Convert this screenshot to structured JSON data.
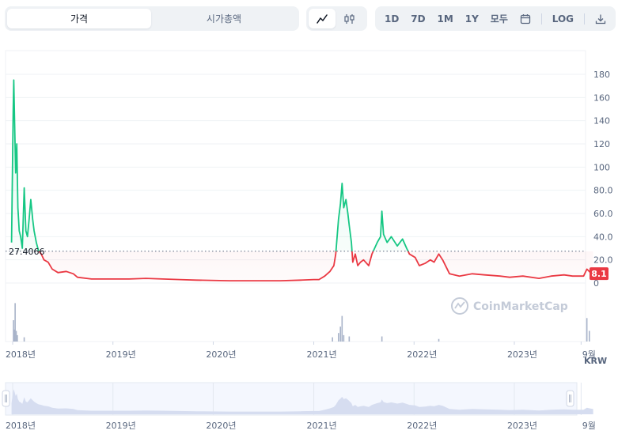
{
  "toolbar": {
    "tabs": [
      {
        "label": "가격",
        "active": true
      },
      {
        "label": "시가총액",
        "active": false
      }
    ],
    "chart_types": [
      {
        "icon": "line-chart-icon",
        "active": true
      },
      {
        "icon": "candlestick-icon",
        "active": false
      }
    ],
    "timeframes": [
      "1D",
      "7D",
      "1M",
      "1Y",
      "모두"
    ],
    "log_label": "LOG",
    "icons": {
      "calendar": "calendar-icon",
      "download": "download-icon"
    }
  },
  "price_panel": {
    "reference_label": "27.4066",
    "current_label": "8.1",
    "currency": "KRW",
    "watermark": "CoinMarketCap"
  },
  "colors": {
    "up": "#16c784",
    "down": "#ea3943",
    "volume": "#a8b3c9",
    "accent": "#ea3943"
  },
  "chart_data": {
    "type": "line",
    "title": "",
    "xlabel": "",
    "ylabel": "",
    "ylim": [
      0,
      190
    ],
    "y_ticks": [
      0,
      20.0,
      40.0,
      60.0,
      80.0,
      100,
      120,
      140,
      160,
      180
    ],
    "reference_value": 27.4066,
    "last_value": 8.1,
    "x_tick_labels": [
      "2018년",
      "2019년",
      "2020년",
      "2021년",
      "2022년",
      "2023년",
      "9월"
    ],
    "grid": true,
    "series": [
      {
        "points": [
          [
            "2017-12-28",
            35
          ],
          [
            "2018-01-03",
            150
          ],
          [
            "2018-01-05",
            175
          ],
          [
            "2018-01-08",
            140
          ],
          [
            "2018-01-12",
            95
          ],
          [
            "2018-01-16",
            120
          ],
          [
            "2018-01-20",
            65
          ],
          [
            "2018-01-25",
            45
          ],
          [
            "2018-01-30",
            40
          ],
          [
            "2018-02-05",
            30
          ],
          [
            "2018-02-12",
            82
          ],
          [
            "2018-02-18",
            45
          ],
          [
            "2018-02-24",
            40
          ],
          [
            "2018-03-02",
            55
          ],
          [
            "2018-03-08",
            72
          ],
          [
            "2018-03-15",
            55
          ],
          [
            "2018-03-20",
            45
          ],
          [
            "2018-03-28",
            35
          ],
          [
            "2018-04-05",
            28
          ],
          [
            "2018-04-15",
            25
          ],
          [
            "2018-04-25",
            20
          ],
          [
            "2018-05-10",
            18
          ],
          [
            "2018-05-25",
            12
          ],
          [
            "2018-06-15",
            9
          ],
          [
            "2018-07-15",
            10
          ],
          [
            "2018-08-10",
            8
          ],
          [
            "2018-08-25",
            5
          ],
          [
            "2018-10-15",
            3.5
          ],
          [
            "2019-01-01",
            3.5
          ],
          [
            "2019-03-01",
            3.5
          ],
          [
            "2019-05-01",
            4
          ],
          [
            "2019-07-01",
            3.5
          ],
          [
            "2019-09-01",
            3
          ],
          [
            "2019-11-01",
            2.5
          ],
          [
            "2020-03-01",
            2
          ],
          [
            "2020-06-01",
            2
          ],
          [
            "2020-09-01",
            2
          ],
          [
            "2020-11-15",
            2.5
          ],
          [
            "2021-01-01",
            3
          ],
          [
            "2021-01-20",
            3
          ],
          [
            "2021-02-10",
            6
          ],
          [
            "2021-03-01",
            10
          ],
          [
            "2021-03-15",
            15
          ],
          [
            "2021-03-22",
            25
          ],
          [
            "2021-04-01",
            55
          ],
          [
            "2021-04-08",
            68
          ],
          [
            "2021-04-14",
            86
          ],
          [
            "2021-04-20",
            65
          ],
          [
            "2021-04-28",
            72
          ],
          [
            "2021-05-05",
            60
          ],
          [
            "2021-05-10",
            50
          ],
          [
            "2021-05-18",
            35
          ],
          [
            "2021-05-23",
            18
          ],
          [
            "2021-06-01",
            25
          ],
          [
            "2021-06-10",
            15
          ],
          [
            "2021-06-20",
            18
          ],
          [
            "2021-07-01",
            20
          ],
          [
            "2021-07-20",
            15
          ],
          [
            "2021-08-01",
            25
          ],
          [
            "2021-08-20",
            35
          ],
          [
            "2021-09-01",
            40
          ],
          [
            "2021-09-06",
            62
          ],
          [
            "2021-09-12",
            42
          ],
          [
            "2021-09-25",
            35
          ],
          [
            "2021-10-10",
            40
          ],
          [
            "2021-11-01",
            32
          ],
          [
            "2021-11-20",
            38
          ],
          [
            "2021-12-05",
            30
          ],
          [
            "2021-12-15",
            25
          ],
          [
            "2022-01-05",
            22
          ],
          [
            "2022-01-20",
            15
          ],
          [
            "2022-02-10",
            17
          ],
          [
            "2022-03-01",
            20
          ],
          [
            "2022-03-15",
            18
          ],
          [
            "2022-04-01",
            25
          ],
          [
            "2022-04-15",
            20
          ],
          [
            "2022-05-10",
            8
          ],
          [
            "2022-06-15",
            6
          ],
          [
            "2022-08-01",
            8
          ],
          [
            "2022-09-15",
            7
          ],
          [
            "2022-11-10",
            6
          ],
          [
            "2022-12-15",
            5
          ],
          [
            "2023-02-01",
            6
          ],
          [
            "2023-04-01",
            4
          ],
          [
            "2023-05-15",
            6
          ],
          [
            "2023-07-01",
            7
          ],
          [
            "2023-08-01",
            6
          ],
          [
            "2023-09-10",
            6
          ],
          [
            "2023-09-22",
            12
          ],
          [
            "2023-10-05",
            9
          ],
          [
            "2023-10-15",
            8.1
          ]
        ]
      }
    ],
    "volume": [
      [
        "2018-01-04",
        0.5
      ],
      [
        "2018-01-06",
        0.28
      ],
      [
        "2018-01-10",
        0.9
      ],
      [
        "2018-01-14",
        0.25
      ],
      [
        "2018-01-18",
        0.15
      ],
      [
        "2018-02-12",
        0.1
      ],
      [
        "2021-03-10",
        0.1
      ],
      [
        "2021-04-01",
        0.2
      ],
      [
        "2021-04-08",
        0.35
      ],
      [
        "2021-04-14",
        0.6
      ],
      [
        "2021-04-20",
        0.15
      ],
      [
        "2021-05-10",
        0.12
      ],
      [
        "2021-09-06",
        0.12
      ],
      [
        "2022-04-01",
        0.06
      ],
      [
        "2023-09-22",
        0.55
      ],
      [
        "2023-10-01",
        0.25
      ]
    ],
    "navigator_x_tick_labels": [
      "2018년",
      "2019년",
      "2020년",
      "2021년",
      "2022년",
      "2023년",
      "9월"
    ]
  }
}
